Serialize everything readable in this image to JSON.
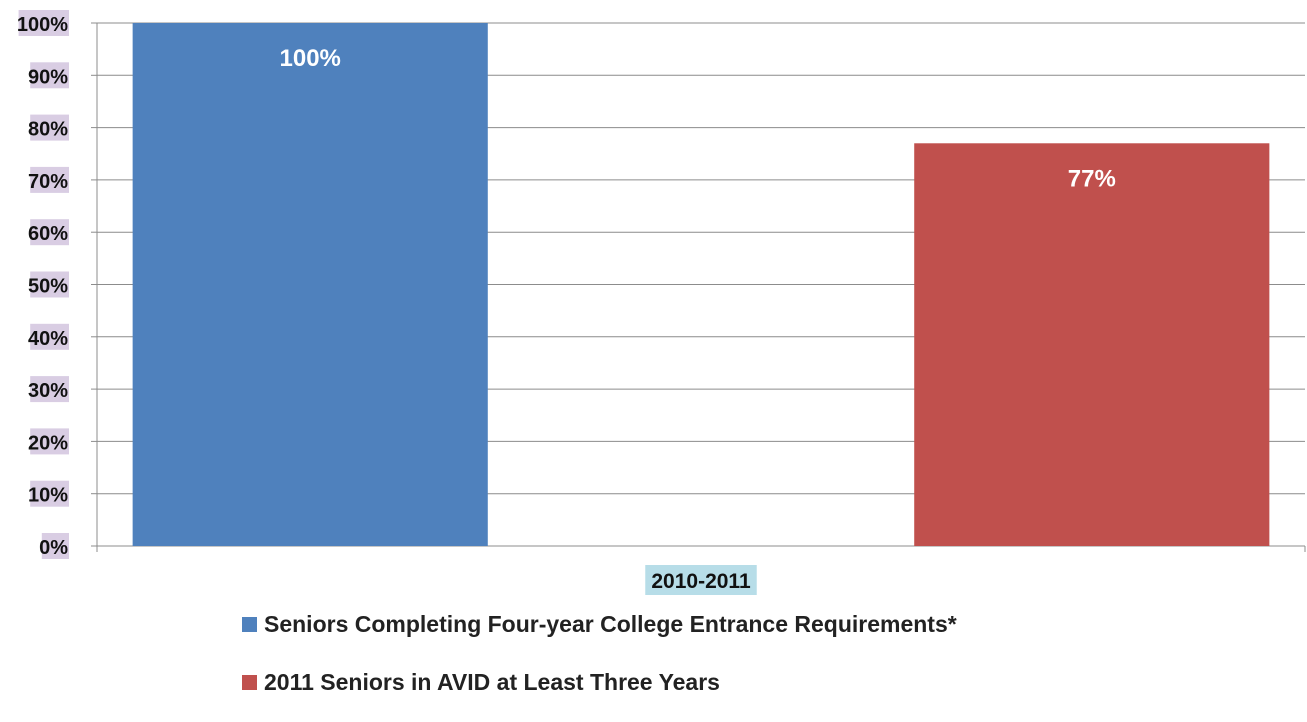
{
  "chart_data": {
    "type": "bar",
    "title": "",
    "xlabel": "",
    "ylabel": "",
    "categories": [
      "2010-2011"
    ],
    "ylim": [
      0,
      100
    ],
    "yticks": [
      "0%",
      "10%",
      "20%",
      "30%",
      "40%",
      "50%",
      "60%",
      "70%",
      "80%",
      "90%",
      "100%"
    ],
    "ytick_values": [
      0,
      10,
      20,
      30,
      40,
      50,
      60,
      70,
      80,
      90,
      100
    ],
    "grid": true,
    "legend_position": "bottom",
    "series": [
      {
        "name": "Seniors Completing Four-year College Entrance Requirements*",
        "values": [
          100
        ],
        "data_labels": [
          "100%"
        ],
        "color": "#4f81bd"
      },
      {
        "name": "2011 Seniors in AVID at Least Three Years",
        "values": [
          77
        ],
        "data_labels": [
          "77%"
        ],
        "color": "#c0504d"
      }
    ],
    "tick_label_highlight_color": "#d9cde3",
    "category_label_highlight_color": "#b7dde8"
  }
}
